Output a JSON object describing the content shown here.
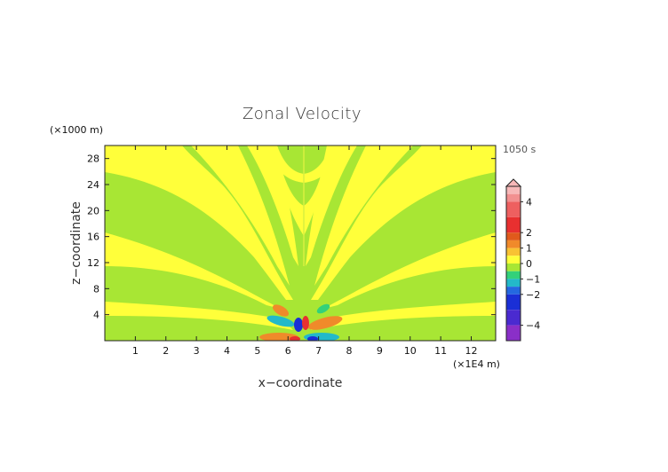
{
  "chart_data": {
    "type": "heatmap",
    "title": "Zonal Velocity",
    "xlabel": "x−coordinate",
    "ylabel": "z−coordinate",
    "x_unit": "(×1E4 m)",
    "y_unit": "(×1000 m)",
    "time_label": "1050 s",
    "xlim": [
      0,
      12.8
    ],
    "ylim": [
      0,
      30
    ],
    "x_ticks": [
      "1",
      "2",
      "3",
      "4",
      "5",
      "6",
      "7",
      "8",
      "9",
      "10",
      "11",
      "12"
    ],
    "y_ticks": [
      "4",
      "8",
      "12",
      "16",
      "20",
      "24",
      "28"
    ],
    "x_tick_values": [
      1,
      2,
      3,
      4,
      5,
      6,
      7,
      8,
      9,
      10,
      11,
      12
    ],
    "y_tick_values": [
      4,
      8,
      12,
      16,
      20,
      24,
      28
    ],
    "colorbar": {
      "min": -5,
      "max": 5,
      "labels": [
        "4",
        "2",
        "1",
        "0",
        "−1",
        "−2",
        "−4"
      ],
      "label_values": [
        4,
        2,
        1,
        0,
        -1,
        -2,
        -4
      ],
      "levels": [
        {
          "from": 4.5,
          "to": 5,
          "color": "#f7b8b8"
        },
        {
          "from": 4,
          "to": 4.5,
          "color": "#f29090"
        },
        {
          "from": 3,
          "to": 4,
          "color": "#ee6060"
        },
        {
          "from": 2,
          "to": 3,
          "color": "#e83030"
        },
        {
          "from": 1.5,
          "to": 2,
          "color": "#e05a1c"
        },
        {
          "from": 1,
          "to": 1.5,
          "color": "#f08a2a"
        },
        {
          "from": 0.5,
          "to": 1,
          "color": "#f8c233"
        },
        {
          "from": 0,
          "to": 0.5,
          "color": "#ffff3a"
        },
        {
          "from": -0.5,
          "to": 0,
          "color": "#a8e634"
        },
        {
          "from": -1,
          "to": -0.5,
          "color": "#33d17a"
        },
        {
          "from": -1.5,
          "to": -1,
          "color": "#23b9c9"
        },
        {
          "from": -2,
          "to": -1.5,
          "color": "#2468e0"
        },
        {
          "from": -3,
          "to": -2,
          "color": "#1a2fd6"
        },
        {
          "from": -4,
          "to": -3,
          "color": "#4a2ad0"
        },
        {
          "from": -5,
          "to": -4,
          "color": "#8a2fc8"
        }
      ]
    },
    "background_value_color": "#a8e634",
    "field_description_values": {
      "source_x": 6.4,
      "vertical_line_x": 6.4,
      "vertical_line_top": 20
    }
  }
}
